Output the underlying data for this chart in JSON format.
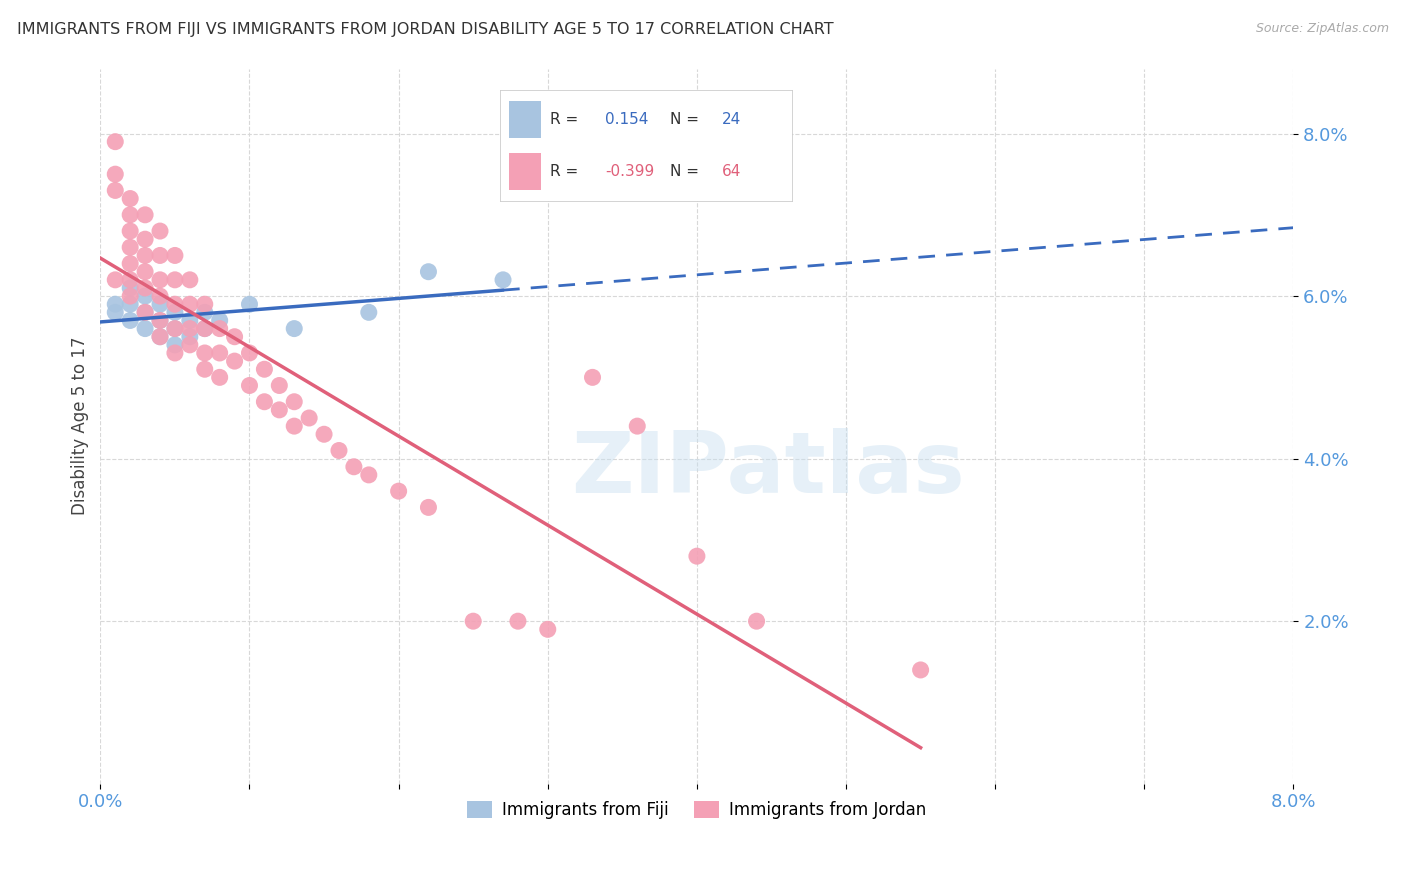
{
  "title": "IMMIGRANTS FROM FIJI VS IMMIGRANTS FROM JORDAN DISABILITY AGE 5 TO 17 CORRELATION CHART",
  "source": "Source: ZipAtlas.com",
  "ylabel": "Disability Age 5 to 17",
  "xlim": [
    0.0,
    0.08
  ],
  "ylim": [
    0.0,
    0.088
  ],
  "xtick_pos": [
    0.0,
    0.01,
    0.02,
    0.03,
    0.04,
    0.05,
    0.06,
    0.07,
    0.08
  ],
  "xtick_labels": [
    "0.0%",
    "",
    "",
    "",
    "",
    "",
    "",
    "",
    "8.0%"
  ],
  "ytick_positions": [
    0.02,
    0.04,
    0.06,
    0.08
  ],
  "ytick_labels": [
    "2.0%",
    "4.0%",
    "6.0%",
    "8.0%"
  ],
  "fiji_R": "0.154",
  "fiji_N": "24",
  "jordan_R": "-0.399",
  "jordan_N": "64",
  "fiji_color": "#a8c4e0",
  "jordan_color": "#f4a0b5",
  "fiji_line_color": "#3a6bbf",
  "jordan_line_color": "#e0607a",
  "background_color": "#ffffff",
  "grid_color": "#d8d8d8",
  "watermark_text": "ZIPatlas",
  "fiji_points": [
    [
      0.001,
      0.059
    ],
    [
      0.001,
      0.058
    ],
    [
      0.002,
      0.061
    ],
    [
      0.002,
      0.059
    ],
    [
      0.002,
      0.057
    ],
    [
      0.003,
      0.06
    ],
    [
      0.003,
      0.058
    ],
    [
      0.003,
      0.056
    ],
    [
      0.004,
      0.059
    ],
    [
      0.004,
      0.057
    ],
    [
      0.004,
      0.055
    ],
    [
      0.005,
      0.058
    ],
    [
      0.005,
      0.056
    ],
    [
      0.005,
      0.054
    ],
    [
      0.006,
      0.057
    ],
    [
      0.006,
      0.055
    ],
    [
      0.007,
      0.058
    ],
    [
      0.007,
      0.056
    ],
    [
      0.008,
      0.057
    ],
    [
      0.01,
      0.059
    ],
    [
      0.013,
      0.056
    ],
    [
      0.018,
      0.058
    ],
    [
      0.022,
      0.063
    ],
    [
      0.027,
      0.062
    ]
  ],
  "jordan_points": [
    [
      0.001,
      0.062
    ],
    [
      0.001,
      0.079
    ],
    [
      0.001,
      0.075
    ],
    [
      0.001,
      0.073
    ],
    [
      0.002,
      0.072
    ],
    [
      0.002,
      0.07
    ],
    [
      0.002,
      0.068
    ],
    [
      0.002,
      0.066
    ],
    [
      0.002,
      0.064
    ],
    [
      0.002,
      0.062
    ],
    [
      0.002,
      0.06
    ],
    [
      0.003,
      0.07
    ],
    [
      0.003,
      0.067
    ],
    [
      0.003,
      0.065
    ],
    [
      0.003,
      0.063
    ],
    [
      0.003,
      0.061
    ],
    [
      0.003,
      0.058
    ],
    [
      0.004,
      0.068
    ],
    [
      0.004,
      0.065
    ],
    [
      0.004,
      0.062
    ],
    [
      0.004,
      0.06
    ],
    [
      0.004,
      0.057
    ],
    [
      0.004,
      0.055
    ],
    [
      0.005,
      0.065
    ],
    [
      0.005,
      0.062
    ],
    [
      0.005,
      0.059
    ],
    [
      0.005,
      0.056
    ],
    [
      0.005,
      0.053
    ],
    [
      0.006,
      0.062
    ],
    [
      0.006,
      0.059
    ],
    [
      0.006,
      0.056
    ],
    [
      0.006,
      0.054
    ],
    [
      0.007,
      0.059
    ],
    [
      0.007,
      0.056
    ],
    [
      0.007,
      0.053
    ],
    [
      0.007,
      0.051
    ],
    [
      0.008,
      0.056
    ],
    [
      0.008,
      0.053
    ],
    [
      0.008,
      0.05
    ],
    [
      0.009,
      0.055
    ],
    [
      0.009,
      0.052
    ],
    [
      0.01,
      0.053
    ],
    [
      0.01,
      0.049
    ],
    [
      0.011,
      0.051
    ],
    [
      0.011,
      0.047
    ],
    [
      0.012,
      0.049
    ],
    [
      0.012,
      0.046
    ],
    [
      0.013,
      0.047
    ],
    [
      0.013,
      0.044
    ],
    [
      0.014,
      0.045
    ],
    [
      0.015,
      0.043
    ],
    [
      0.016,
      0.041
    ],
    [
      0.017,
      0.039
    ],
    [
      0.018,
      0.038
    ],
    [
      0.02,
      0.036
    ],
    [
      0.022,
      0.034
    ],
    [
      0.025,
      0.02
    ],
    [
      0.028,
      0.02
    ],
    [
      0.03,
      0.019
    ],
    [
      0.033,
      0.05
    ],
    [
      0.036,
      0.044
    ],
    [
      0.04,
      0.028
    ],
    [
      0.044,
      0.02
    ],
    [
      0.055,
      0.014
    ]
  ]
}
